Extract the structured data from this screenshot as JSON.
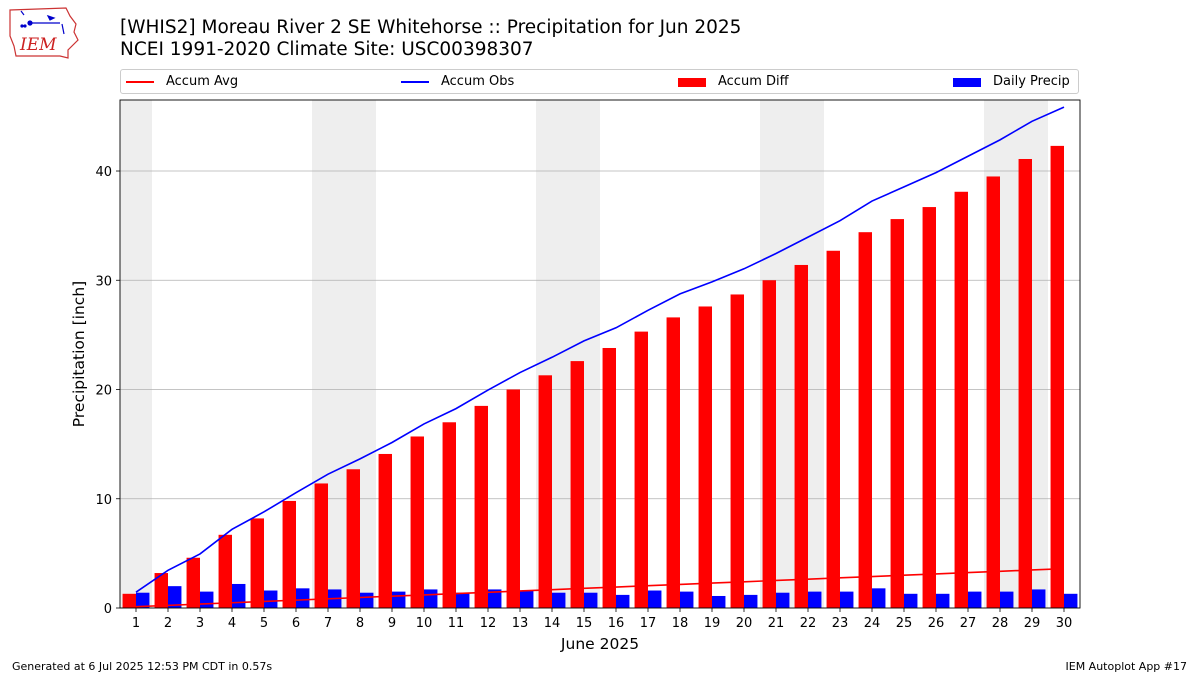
{
  "header": {
    "title_line1": "[WHIS2] Moreau River 2 SE Whitehorse :: Precipitation for Jun 2025",
    "title_line2": "NCEI 1991-2020 Climate Site: USC00398307"
  },
  "logo": {
    "text": "IEM",
    "icon": "iowa-state-logo-icon"
  },
  "footer": {
    "left": "Generated at 6 Jul 2025 12:53 PM CDT in 0.57s",
    "right": "IEM Autoplot App #17"
  },
  "colors": {
    "accum_avg": "#ff0000",
    "accum_obs": "#0000ff",
    "accum_diff": "#ff0000",
    "daily_precip": "#0000ff",
    "weekend_band": "#eeeeee",
    "grid": "#b0b0b0"
  },
  "chart_data": {
    "type": "bar",
    "xlabel": "June 2025",
    "ylabel": "Precipitation [inch]",
    "ylim": [
      0,
      46.5
    ],
    "xlim": [
      0.5,
      30.5
    ],
    "y_ticks": [
      0,
      10,
      20,
      30,
      40
    ],
    "grid": "horizontal",
    "legend_placement": "top",
    "categories": [
      "1",
      "2",
      "3",
      "4",
      "5",
      "6",
      "7",
      "8",
      "9",
      "10",
      "11",
      "12",
      "13",
      "14",
      "15",
      "16",
      "17",
      "18",
      "19",
      "20",
      "21",
      "22",
      "23",
      "24",
      "25",
      "26",
      "27",
      "28",
      "29",
      "30"
    ],
    "shaded_days": [
      1,
      7,
      8,
      14,
      15,
      21,
      22,
      28,
      29
    ],
    "series": [
      {
        "name": "Accum Avg",
        "kind": "line",
        "color": "#ff0000",
        "values": [
          0.12,
          0.24,
          0.36,
          0.48,
          0.6,
          0.72,
          0.84,
          0.96,
          1.08,
          1.2,
          1.32,
          1.44,
          1.56,
          1.68,
          1.8,
          1.92,
          2.04,
          2.16,
          2.28,
          2.4,
          2.52,
          2.64,
          2.76,
          2.88,
          3.0,
          3.12,
          3.24,
          3.36,
          3.48,
          3.6
        ]
      },
      {
        "name": "Accum Obs",
        "kind": "line",
        "color": "#0000ff",
        "values": [
          1.45,
          3.45,
          4.95,
          7.2,
          8.8,
          10.55,
          12.25,
          13.65,
          15.15,
          16.85,
          18.25,
          19.95,
          21.55,
          22.95,
          24.45,
          25.65,
          27.25,
          28.75,
          29.85,
          31.05,
          32.45,
          33.95,
          35.45,
          37.25,
          38.55,
          39.85,
          41.35,
          42.85,
          44.55,
          45.85
        ]
      },
      {
        "name": "Accum Diff",
        "kind": "bar",
        "color": "#ff0000",
        "values": [
          1.3,
          3.2,
          4.6,
          6.7,
          8.2,
          9.8,
          11.4,
          12.7,
          14.1,
          15.7,
          17.0,
          18.5,
          20.0,
          21.3,
          22.6,
          23.8,
          25.3,
          26.6,
          27.6,
          28.7,
          30.0,
          31.4,
          32.7,
          34.4,
          35.6,
          36.7,
          38.1,
          39.5,
          41.1,
          42.3
        ]
      },
      {
        "name": "Daily Precip",
        "kind": "bar",
        "color": "#0000ff",
        "values": [
          1.4,
          2.0,
          1.5,
          2.2,
          1.6,
          1.8,
          1.7,
          1.4,
          1.5,
          1.7,
          1.4,
          1.7,
          1.6,
          1.4,
          1.4,
          1.2,
          1.6,
          1.5,
          1.1,
          1.2,
          1.4,
          1.5,
          1.5,
          1.8,
          1.3,
          1.3,
          1.5,
          1.5,
          1.7,
          1.3
        ]
      }
    ]
  }
}
